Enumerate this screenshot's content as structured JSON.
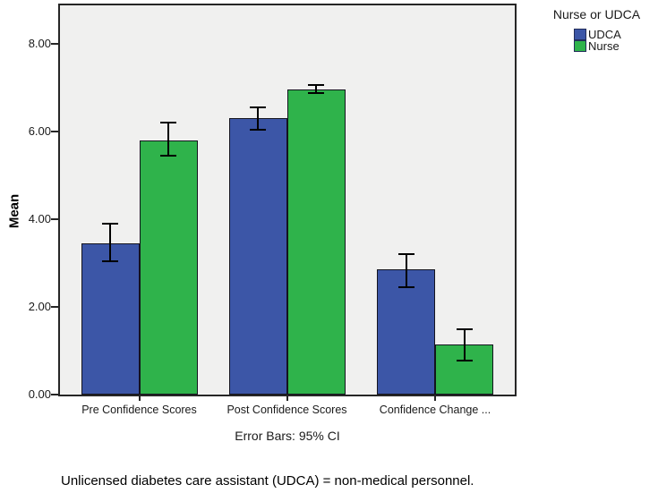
{
  "figure": {
    "y_axis_title": "Mean",
    "caption": "Error Bars: 95% CI",
    "footnote": "Unlicensed diabetes care assistant (UDCA) = non-medical personnel."
  },
  "legend": {
    "title": "Nurse or UDCA",
    "items": [
      {
        "label": "UDCA",
        "color": "#3C56A7"
      },
      {
        "label": "Nurse",
        "color": "#2FB34B"
      }
    ]
  },
  "chart_data": {
    "type": "bar",
    "title": "",
    "categories": [
      "Pre Confidence Scores",
      "Post Confidence Scores",
      "Confidence Change ..."
    ],
    "series": [
      {
        "name": "UDCA",
        "color": "#3C56A7",
        "values": [
          3.45,
          6.3,
          2.85
        ],
        "ci_low": [
          3.05,
          6.05,
          2.45
        ],
        "ci_high": [
          3.9,
          6.55,
          3.2
        ]
      },
      {
        "name": "Nurse",
        "color": "#2FB34B",
        "values": [
          5.8,
          6.95,
          1.15
        ],
        "ci_low": [
          5.45,
          6.87,
          0.78
        ],
        "ci_high": [
          6.2,
          7.07,
          1.5
        ]
      }
    ],
    "ylabel": "Mean",
    "xlabel": "",
    "ylim": [
      0,
      8.9
    ],
    "yticks": [
      0,
      2,
      4,
      6,
      8
    ],
    "ytick_labels": [
      "0.00",
      "2.00",
      "4.00",
      "6.00",
      "8.00"
    ],
    "error_bars_note": "Error Bars: 95% CI",
    "legend_title": "Nurse or UDCA",
    "legend_position": "top-right",
    "grid": false,
    "plot_background": "#F0F0EF",
    "bar_border_color": "#14141E",
    "error_bar_color": "#000000"
  }
}
